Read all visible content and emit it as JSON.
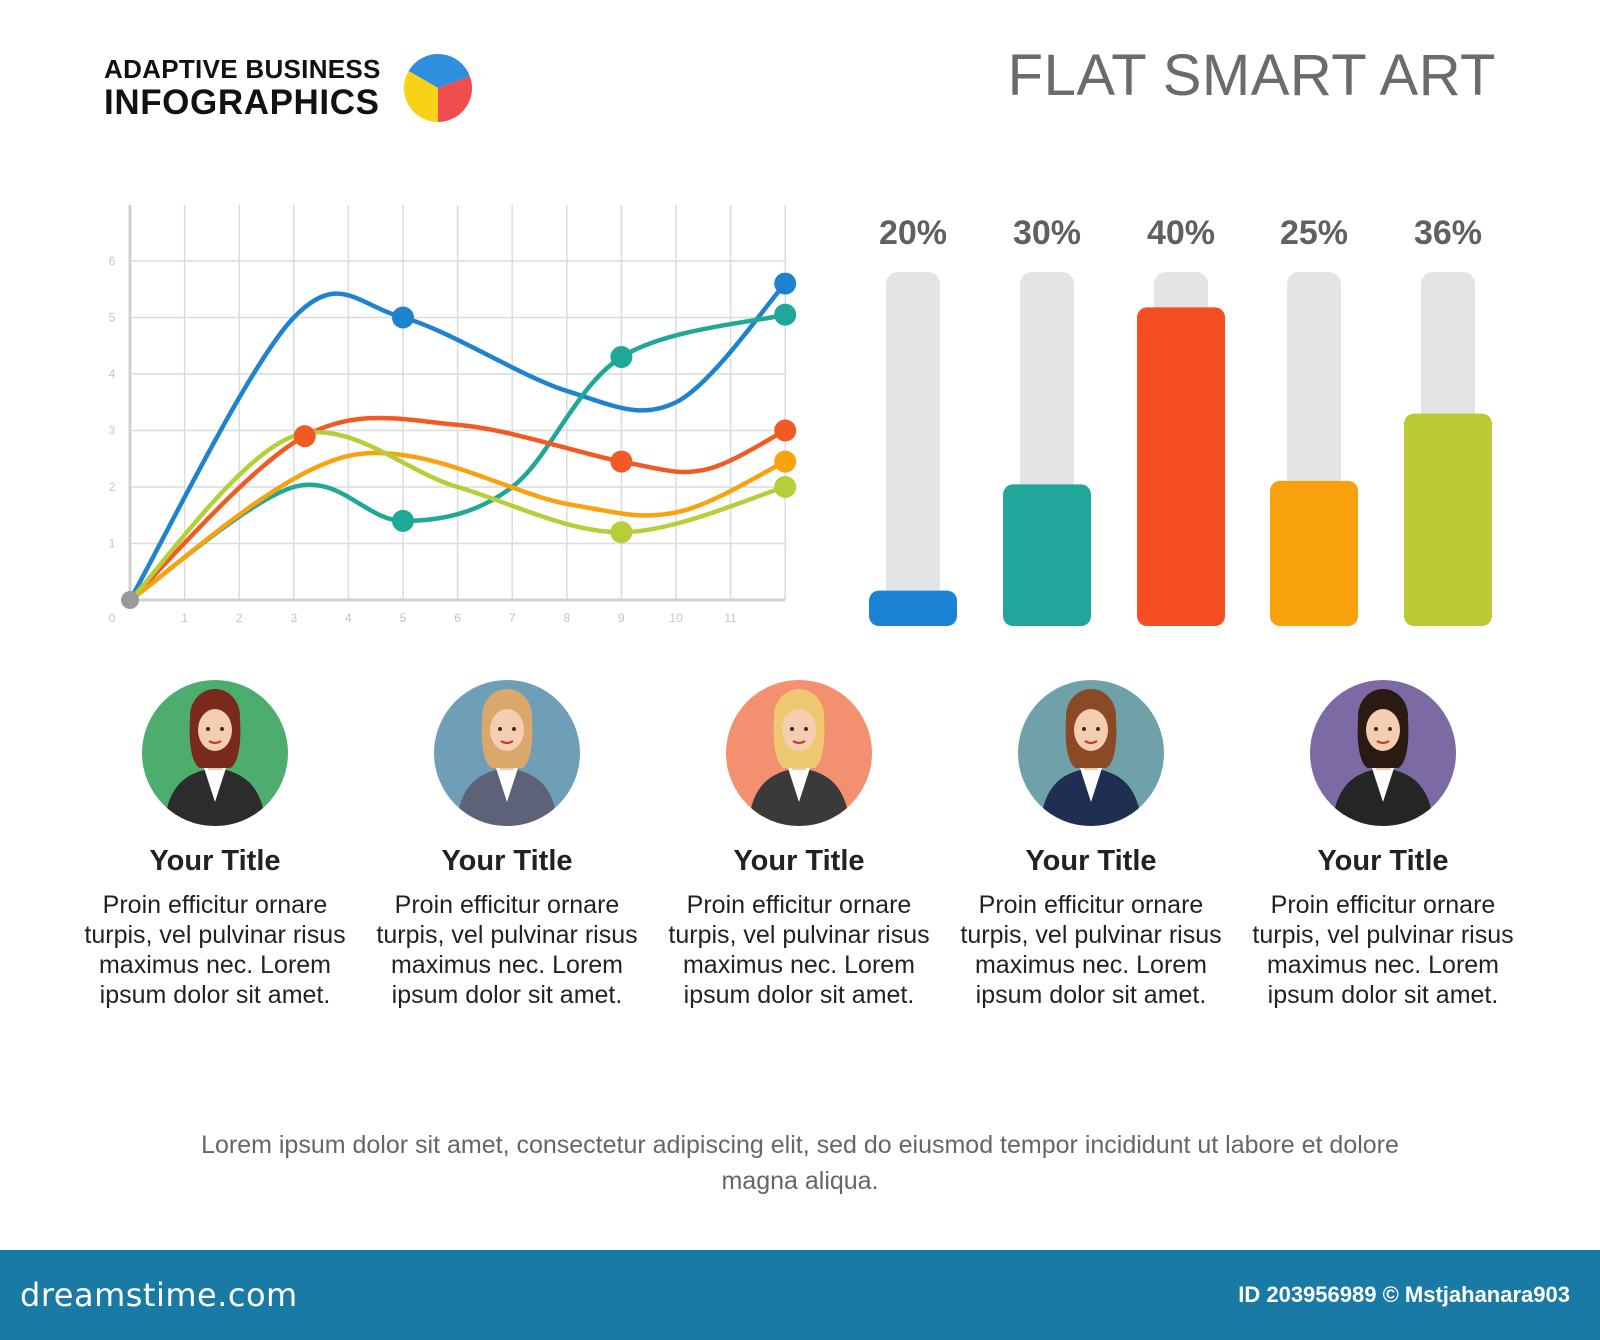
{
  "header": {
    "logo_line1": "ADAPTIVE BUSINESS",
    "logo_line2": "INFOGRAPHICS",
    "headline": "FLAT SMART ART",
    "logo_pie_colors": [
      "#2f8fdd",
      "#f04e4e",
      "#f7d217"
    ]
  },
  "chart_data": [
    {
      "type": "line",
      "x_ticks": [
        "0",
        "1",
        "2",
        "3",
        "4",
        "5",
        "6",
        "7",
        "8",
        "9",
        "10",
        "11"
      ],
      "y_ticks": [
        "1",
        "2",
        "3",
        "4",
        "5",
        "6"
      ],
      "xlim": [
        0,
        12
      ],
      "ylim": [
        0,
        7
      ],
      "grid": true,
      "series": [
        {
          "color": "#1f82cf",
          "points": [
            [
              0,
              0
            ],
            [
              3,
              5
            ],
            [
              5,
              5
            ],
            [
              8,
              3.7
            ],
            [
              10,
              3.5
            ],
            [
              12,
              5.6
            ]
          ],
          "markers": [
            [
              5,
              5
            ],
            [
              12,
              5.6
            ]
          ]
        },
        {
          "color": "#1fa898",
          "points": [
            [
              0,
              0
            ],
            [
              3,
              2
            ],
            [
              5,
              1.4
            ],
            [
              7,
              2
            ],
            [
              9,
              4.3
            ],
            [
              12,
              5.05
            ]
          ],
          "markers": [
            [
              5,
              1.4
            ],
            [
              9,
              4.3
            ],
            [
              12,
              5.05
            ]
          ]
        },
        {
          "color": "#f25a25",
          "points": [
            [
              0,
              0
            ],
            [
              3.2,
              2.9
            ],
            [
              6,
              3.1
            ],
            [
              9,
              2.45
            ],
            [
              10.5,
              2.3
            ],
            [
              12,
              3
            ]
          ],
          "markers": [
            [
              3.2,
              2.9
            ],
            [
              9,
              2.45
            ],
            [
              12,
              3
            ]
          ]
        },
        {
          "color": "#f8a20f",
          "points": [
            [
              0,
              0
            ],
            [
              4,
              2.55
            ],
            [
              8,
              1.7
            ],
            [
              10,
              1.55
            ],
            [
              12,
              2.45
            ]
          ],
          "markers": [
            [
              12,
              2.45
            ]
          ]
        },
        {
          "color": "#b7cd3a",
          "points": [
            [
              0,
              0
            ],
            [
              3,
              2.9
            ],
            [
              6,
              2
            ],
            [
              9,
              1.2
            ],
            [
              12,
              2
            ]
          ],
          "markers": [
            [
              9,
              1.2
            ],
            [
              12,
              2
            ]
          ]
        }
      ]
    },
    {
      "type": "bar",
      "categories": [
        "20%",
        "30%",
        "40%",
        "25%",
        "36%"
      ],
      "values": [
        20,
        30,
        40,
        25,
        36
      ],
      "fill_fraction": [
        0.1,
        0.4,
        0.9,
        0.41,
        0.6
      ],
      "colors": [
        "#1a83d4",
        "#20a69a",
        "#f44e22",
        "#f9a00d",
        "#bcc935"
      ],
      "track_color": "#e4e4e4"
    }
  ],
  "persons": [
    {
      "title": "Your Title",
      "text": "Proin efficitur ornare turpis, vel pulvinar risus maximus nec. Lorem ipsum dolor sit amet.",
      "bg_color": "#4cad6e",
      "hair": "#7a2a1c",
      "suit": "#2c2c2c"
    },
    {
      "title": "Your Title",
      "text": "Proin efficitur ornare turpis, vel pulvinar risus maximus nec. Lorem ipsum dolor sit amet.",
      "bg_color": "#6e9fb7",
      "hair": "#d9a86a",
      "suit": "#5e6279"
    },
    {
      "title": "Your Title",
      "text": "Proin efficitur ornare turpis, vel pulvinar risus maximus nec. Lorem ipsum dolor sit amet.",
      "bg_color": "#f2906f",
      "hair": "#edc870",
      "suit": "#3a3a3a"
    },
    {
      "title": "Your Title",
      "text": "Proin efficitur ornare turpis, vel pulvinar risus maximus nec. Lorem ipsum dolor sit amet.",
      "bg_color": "#6fa2a8",
      "hair": "#8a4a26",
      "suit": "#1e2f52"
    },
    {
      "title": "Your Title",
      "text": "Proin efficitur ornare turpis, vel pulvinar risus maximus nec. Lorem ipsum dolor sit amet.",
      "bg_color": "#7b6aa4",
      "hair": "#2b1a12",
      "suit": "#252525"
    }
  ],
  "footer": {
    "text": "Lorem ipsum dolor sit amet, consectetur adipiscing elit, sed do eiusmod tempor incididunt ut labore et dolore magna aliqua."
  },
  "bottom_bar": {
    "brand": "dreamstime.com",
    "stock_id": "ID 203956989 © Mstjahanara903"
  }
}
